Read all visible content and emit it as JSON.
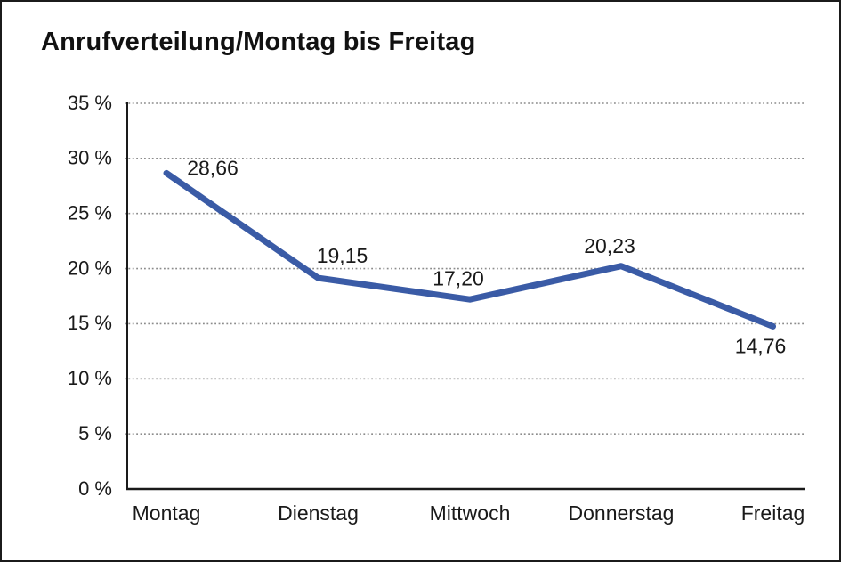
{
  "window": {
    "background_color": "#ffffff",
    "border_color": "#1b1b1b"
  },
  "header": {
    "title": "Anrufverteilung/Montag bis Freitag"
  },
  "chart_data": {
    "type": "line",
    "title": "Anrufverteilung/Montag bis Freitag",
    "categories": [
      "Montag",
      "Dienstag",
      "Mittwoch",
      "Donnerstag",
      "Freitag"
    ],
    "values": [
      28.66,
      19.15,
      17.2,
      20.23,
      14.76
    ],
    "value_labels": [
      "28,66",
      "19,15",
      "17,20",
      "20,23",
      "14,76"
    ],
    "xlabel": "",
    "ylabel": "",
    "ylim": [
      0,
      35
    ],
    "y_tick_step": 5,
    "y_tick_labels": [
      "0 %",
      "5 %",
      "10 %",
      "15 %",
      "20 %",
      "25 %",
      "30 %",
      "35 %"
    ],
    "grid": "horizontal-dotted",
    "legend": "none",
    "line_color": "#3a5ba6",
    "grid_color": "#8c8c8c",
    "axis_color": "#1a1a1a",
    "text_color": "#1a1a1a"
  }
}
